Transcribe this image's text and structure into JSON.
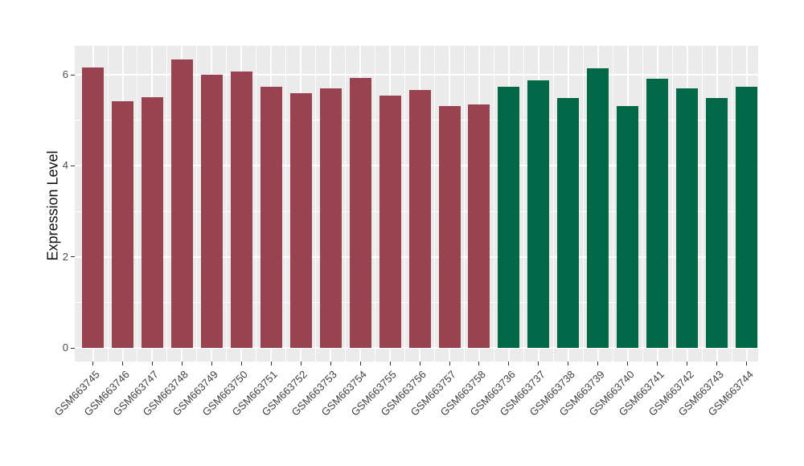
{
  "figure": {
    "background_color": "#ffffff",
    "panel_background_color": "#ebebeb",
    "gridline_color": "#ffffff",
    "axis_text_color": "#4d4d4d",
    "axis_title_color": "#111111",
    "tick_mark_color": "#333333"
  },
  "chart_data": {
    "type": "bar",
    "title": "",
    "xlabel": "",
    "ylabel": "Expression Level",
    "ylim": [
      -0.32,
      6.65
    ],
    "y_ticks": [
      0,
      2,
      4,
      6
    ],
    "grid": "white major and minor gridlines on gray panel (ggplot style)",
    "legend": "none",
    "x_tick_label_rotation_deg": 45,
    "categories": [
      "GSM663745",
      "GSM663746",
      "GSM663747",
      "GSM663748",
      "GSM663749",
      "GSM663750",
      "GSM663751",
      "GSM663752",
      "GSM663753",
      "GSM663754",
      "GSM663755",
      "GSM663756",
      "GSM663757",
      "GSM663758",
      "GSM663736",
      "GSM663737",
      "GSM663738",
      "GSM663739",
      "GSM663740",
      "GSM663741",
      "GSM663742",
      "GSM663743",
      "GSM663744"
    ],
    "values": [
      6.16,
      5.42,
      5.5,
      6.33,
      6.01,
      6.07,
      5.74,
      5.6,
      5.7,
      5.93,
      5.55,
      5.66,
      5.32,
      5.34,
      5.73,
      5.88,
      5.49,
      6.15,
      5.31,
      5.92,
      5.7,
      5.49,
      5.74
    ],
    "bar_groups": [
      0,
      0,
      0,
      0,
      0,
      0,
      0,
      0,
      0,
      0,
      0,
      0,
      0,
      0,
      1,
      1,
      1,
      1,
      1,
      1,
      1,
      1,
      1
    ],
    "group_colors": [
      "#9a4350",
      "#006747"
    ]
  }
}
